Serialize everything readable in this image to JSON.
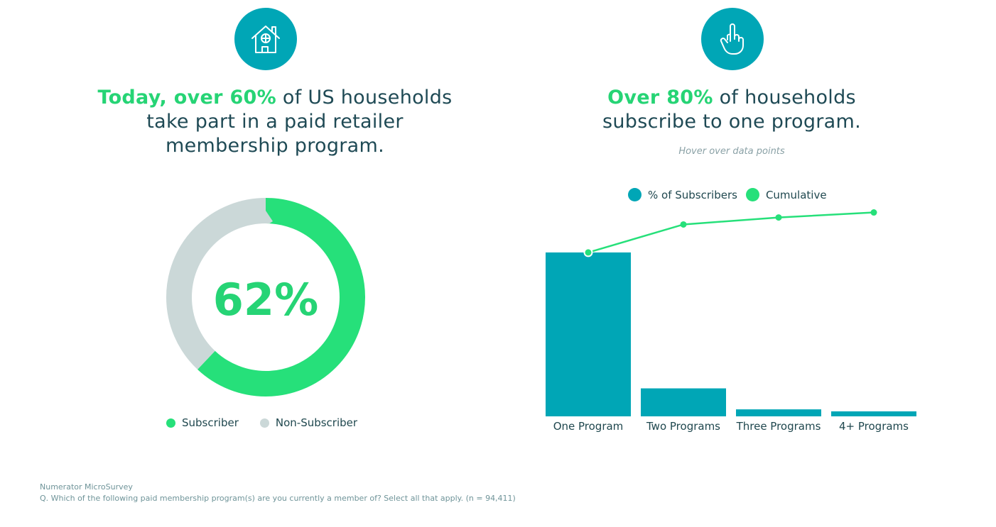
{
  "left": {
    "icon": "house-icon",
    "headline": {
      "highlight": "Today, over 60%",
      "rest_line1": " of US households",
      "line2": "take part in a paid retailer",
      "line3": "membership program."
    },
    "legend": [
      {
        "label": "Subscriber",
        "color": "#26e07a"
      },
      {
        "label": "Non-Subscriber",
        "color": "#cbd8d8"
      }
    ]
  },
  "right": {
    "icon": "raised-finger-icon",
    "headline": {
      "highlight": "Over 80%",
      "rest_line1": " of households",
      "line2": "subscribe to one program."
    },
    "hint": "Hover over data points",
    "legend": [
      {
        "label": "% of Subscribers",
        "color": "#00a6b6"
      },
      {
        "label": "Cumulative",
        "color": "#26e07a"
      }
    ]
  },
  "chart_data": [
    {
      "type": "pie",
      "donut": true,
      "center_label": "62%",
      "slices": [
        {
          "name": "Subscriber",
          "value": 62,
          "color": "#26e07a"
        },
        {
          "name": "Non-Subscriber",
          "value": 38,
          "color": "#cbd8d8"
        }
      ],
      "legend_position": "bottom"
    },
    {
      "type": "bar",
      "categories": [
        "One Program",
        "Two Programs",
        "Three Programs",
        "4+ Programs"
      ],
      "series": [
        {
          "name": "% of Subscribers",
          "type": "bar",
          "values": [
            82,
            14,
            3.5,
            2.5
          ],
          "color": "#00a6b6"
        },
        {
          "name": "Cumulative",
          "type": "line",
          "values": [
            82,
            96,
            99.5,
            102
          ],
          "color": "#26e07a"
        }
      ],
      "ylim": [
        0,
        110
      ],
      "grid": false,
      "legend_position": "top"
    }
  ],
  "footer": {
    "source": "Numerator MicroSurvey",
    "question": "Q. Which of the following paid membership program(s) are you currently a member of? Select all that apply. (n = 94,411)"
  }
}
